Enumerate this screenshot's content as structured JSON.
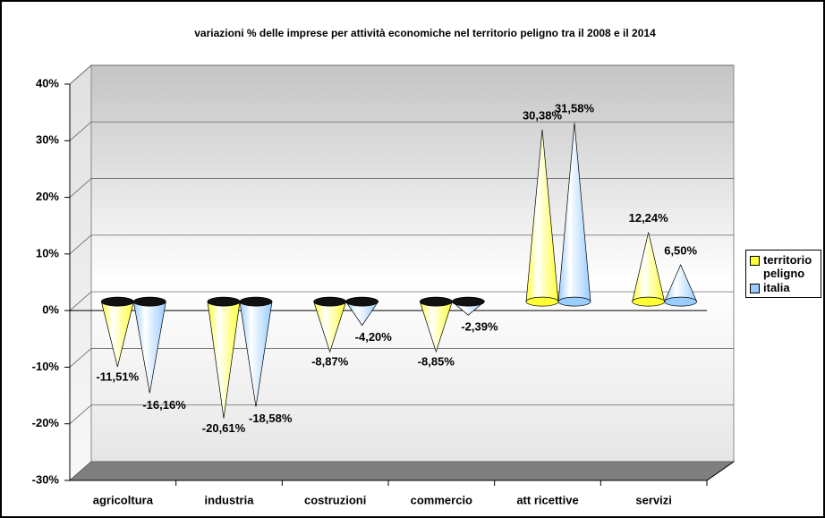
{
  "chart_data": {
    "type": "cone",
    "title": "variazioni % delle imprese per attività economiche nel territorio peligno tra il 2008 e il 2014",
    "categories": [
      "agricoltura",
      "industria",
      "costruzioni",
      "commercio",
      "att ricettive",
      "servizi"
    ],
    "series": [
      {
        "name": "territorio peligno",
        "color": "#ffff33",
        "values": [
          -11.51,
          -20.61,
          -8.87,
          -8.85,
          30.38,
          12.24
        ],
        "value_labels": [
          "-11,51%",
          "-20,61%",
          "-8,87%",
          "-8,85%",
          "30,38%",
          "12,24%"
        ]
      },
      {
        "name": "italia",
        "color": "#99ccff",
        "values": [
          -16.16,
          -18.58,
          -4.2,
          -2.39,
          31.58,
          6.5
        ],
        "value_labels": [
          "-16,16%",
          "-18,58%",
          "-4,20%",
          "-2,39%",
          "31,58%",
          "6,50%"
        ]
      }
    ],
    "ylim": [
      -30,
      40
    ],
    "yticks": [
      {
        "value": -30,
        "label": "-30%"
      },
      {
        "value": -20,
        "label": "-20%"
      },
      {
        "value": -10,
        "label": "-10%"
      },
      {
        "value": 0,
        "label": "0%"
      },
      {
        "value": 10,
        "label": "10%"
      },
      {
        "value": 20,
        "label": "20%"
      },
      {
        "value": 30,
        "label": "30%"
      },
      {
        "value": 40,
        "label": "40%"
      }
    ],
    "grid": true,
    "legend": "right"
  }
}
